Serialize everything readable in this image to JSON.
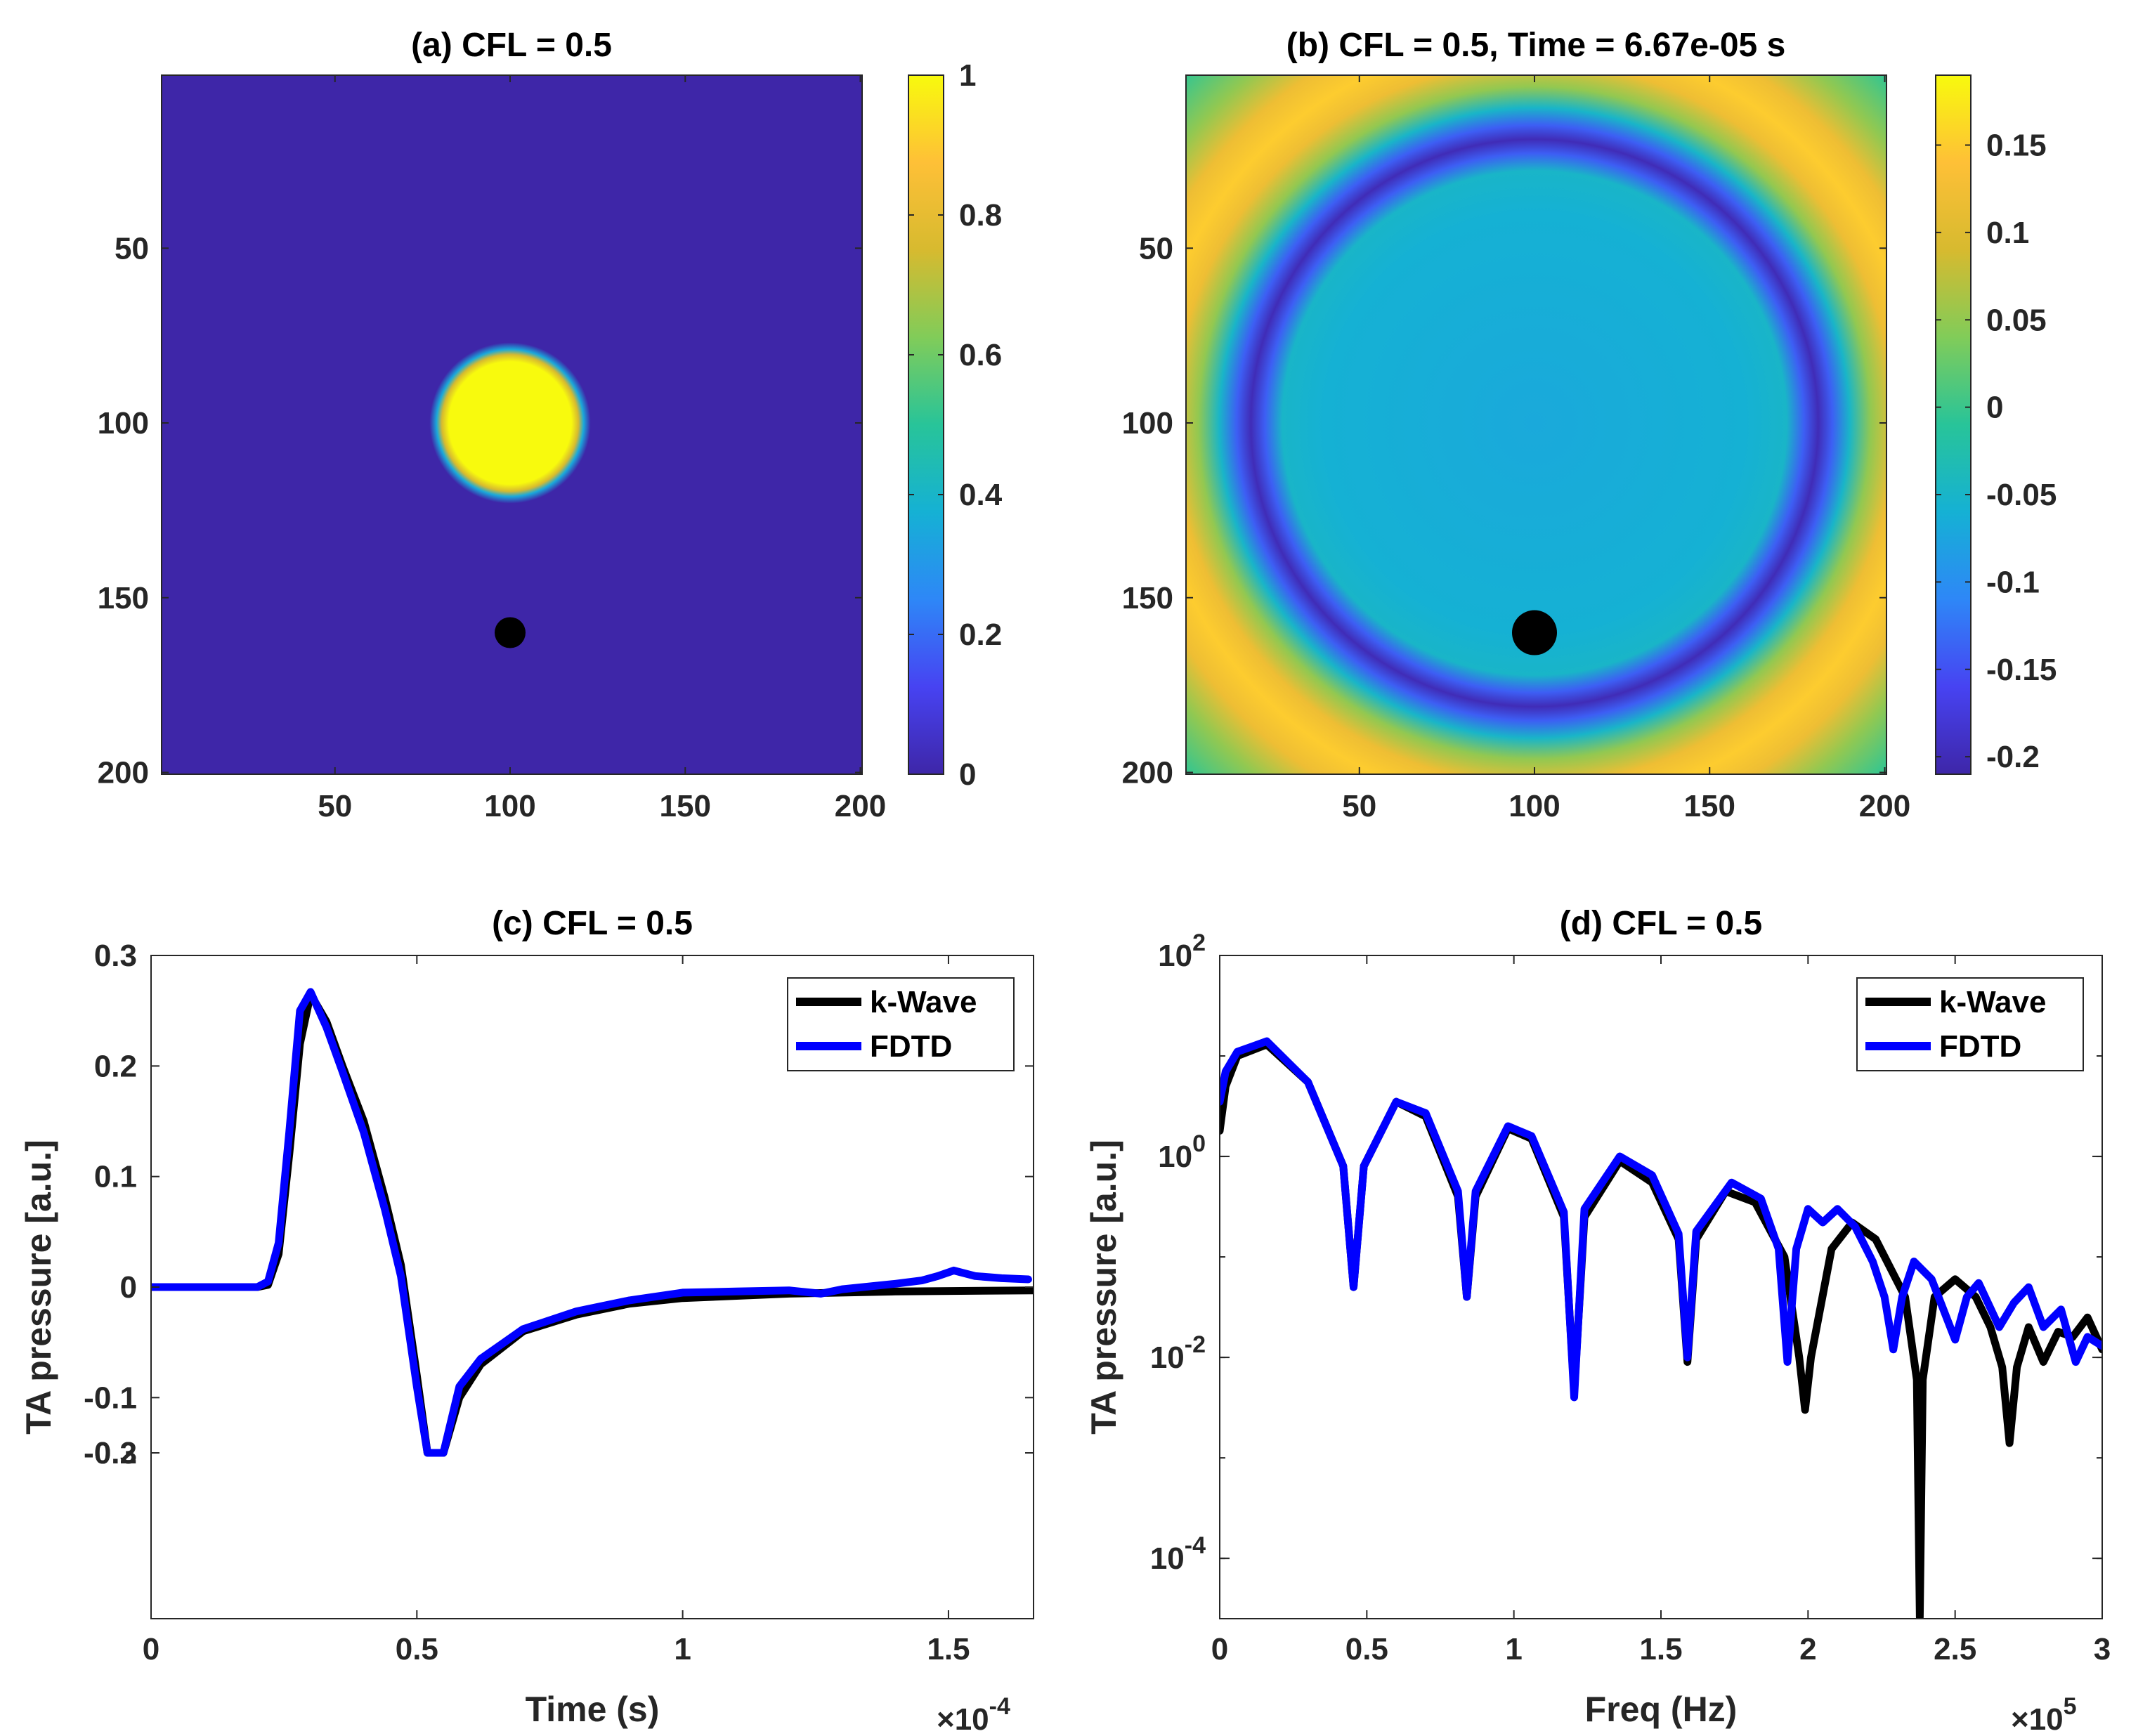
{
  "figure": {
    "panel_a": {
      "title": "(a) CFL = 0.5"
    },
    "panel_b": {
      "title": "(b) CFL = 0.5, Time = 6.67e-05 s"
    },
    "panel_c": {
      "title": "(c) CFL = 0.5",
      "xlabel": "Time (s)",
      "ylabel": "TA pressure [a.u.]",
      "exponent_base": "×10",
      "exponent_power": "-4"
    },
    "panel_d": {
      "title": "(d) CFL = 0.5",
      "xlabel": "Freq (Hz)",
      "ylabel": "TA pressure [a.u.]",
      "exponent_base": "×10",
      "exponent_power": "5"
    }
  },
  "colors": {
    "parula": [
      "#3e26a8",
      "#4743f2",
      "#2e87f7",
      "#15b1d4",
      "#28c499",
      "#81cc59",
      "#d7ba2f",
      "#fec037",
      "#f8fa0d"
    ],
    "kwave": "#000000",
    "fdtd": "#0000ff",
    "marker": "#000000",
    "axes": "#262626"
  },
  "chart_data": [
    {
      "panel": "a",
      "type": "heatmap",
      "title": "(a) CFL = 0.5",
      "xlim": [
        0.5,
        200.5
      ],
      "ylim": [
        0.5,
        200.5
      ],
      "y_reversed": true,
      "xticks": [
        50,
        100,
        150,
        200
      ],
      "yticks": [
        50,
        100,
        150,
        200
      ],
      "field": {
        "background": 0,
        "disk_center": [
          100,
          100
        ],
        "disk_radius": 20,
        "disk_value": 1
      },
      "marker": {
        "x": 100,
        "y": 160
      },
      "colorbar": {
        "range": [
          0,
          1
        ],
        "ticks": [
          0,
          0.2,
          0.4,
          0.6,
          0.8,
          1
        ],
        "tick_labels": [
          "0",
          "0.2",
          "0.4",
          "0.6",
          "0.8",
          "1"
        ]
      }
    },
    {
      "panel": "b",
      "type": "heatmap",
      "title": "(b) CFL = 0.5, Time = 6.67e-05 s",
      "xlim": [
        0.5,
        200.5
      ],
      "ylim": [
        0.5,
        200.5
      ],
      "y_reversed": true,
      "xticks": [
        50,
        100,
        150,
        200
      ],
      "yticks": [
        50,
        100,
        150,
        200
      ],
      "field": {
        "center": [
          100,
          100
        ],
        "inner_value": -0.07,
        "corner_value": 0.0,
        "trough_radius": 81,
        "trough_value": -0.2,
        "peak_radius": 110,
        "peak_value": 0.15
      },
      "marker": {
        "x": 100,
        "y": 160
      },
      "colorbar": {
        "range": [
          -0.21,
          0.19
        ],
        "ticks": [
          -0.2,
          -0.15,
          -0.1,
          -0.05,
          0,
          0.05,
          0.1,
          0.15
        ],
        "tick_labels": [
          "-0.2",
          "-0.15",
          "-0.1",
          "-0.05",
          "0",
          "0.05",
          "0.1",
          "0.15"
        ]
      }
    },
    {
      "panel": "c",
      "type": "line",
      "title": "(c) CFL = 0.5",
      "xlabel": "Time (s)",
      "ylabel": "TA pressure [a.u.]",
      "xlim": [
        0,
        1.66
      ],
      "ylim": [
        -0.3,
        0.3
      ],
      "x_multiplier_exponent": -4,
      "xticks": [
        0,
        0.5,
        1,
        1.5
      ],
      "xtick_labels": [
        "0",
        "0.5",
        "1",
        "1.5"
      ],
      "yticks": [
        -0.3,
        -0.2,
        -0.1,
        0,
        0.1,
        0.2,
        0.3
      ],
      "ytick_labels": [
        "-0.3",
        "-0.2",
        "-0.1",
        "0",
        "0.1",
        "0.2",
        "0.3"
      ],
      "legend_position": "top-right",
      "series": [
        {
          "name": "k-Wave",
          "color": "#000000",
          "x": [
            0,
            0.2,
            0.22,
            0.24,
            0.26,
            0.28,
            0.3,
            0.33,
            0.36,
            0.4,
            0.44,
            0.47,
            0.5,
            0.52,
            0.535,
            0.55,
            0.58,
            0.62,
            0.7,
            0.8,
            0.9,
            1.0,
            1.2,
            1.4,
            1.66
          ],
          "y": [
            0,
            0,
            0.002,
            0.03,
            0.12,
            0.22,
            0.265,
            0.24,
            0.2,
            0.15,
            0.08,
            0.02,
            -0.08,
            -0.18,
            -0.225,
            -0.18,
            -0.1,
            -0.07,
            -0.04,
            -0.025,
            -0.015,
            -0.01,
            -0.006,
            -0.004,
            -0.003
          ]
        },
        {
          "name": "FDTD",
          "color": "#0000ff",
          "x": [
            0,
            0.2,
            0.22,
            0.24,
            0.26,
            0.28,
            0.3,
            0.33,
            0.36,
            0.4,
            0.44,
            0.47,
            0.5,
            0.52,
            0.535,
            0.55,
            0.58,
            0.62,
            0.7,
            0.8,
            0.9,
            1.0,
            1.1,
            1.2,
            1.26,
            1.3,
            1.4,
            1.45,
            1.48,
            1.51,
            1.55,
            1.6,
            1.65
          ],
          "y": [
            0,
            0,
            0.005,
            0.04,
            0.14,
            0.25,
            0.267,
            0.235,
            0.195,
            0.14,
            0.07,
            0.01,
            -0.09,
            -0.19,
            -0.235,
            -0.17,
            -0.09,
            -0.065,
            -0.038,
            -0.022,
            -0.012,
            -0.005,
            -0.004,
            -0.003,
            -0.006,
            -0.002,
            0.003,
            0.006,
            0.01,
            0.015,
            0.01,
            0.008,
            0.007
          ]
        }
      ]
    },
    {
      "panel": "d",
      "type": "line",
      "title": "(d) CFL = 0.5",
      "xlabel": "Freq (Hz)",
      "ylabel": "TA pressure [a.u.]",
      "xlim": [
        0,
        3
      ],
      "ylim": [
        2.51e-05,
        100
      ],
      "yscale": "log",
      "x_multiplier_exponent": 5,
      "xticks": [
        0,
        0.5,
        1,
        1.5,
        2,
        2.5,
        3
      ],
      "xtick_labels": [
        "0",
        "0.5",
        "1",
        "1.5",
        "2",
        "2.5",
        "3"
      ],
      "yticks": [
        0.0001,
        0.01,
        1,
        100
      ],
      "ytick_base": "10",
      "ytick_exponents": [
        "-4",
        "-2",
        "0",
        "2"
      ],
      "legend_position": "top-right",
      "series": [
        {
          "name": "k-Wave",
          "color": "#000000",
          "x": [
            0,
            0.02,
            0.06,
            0.16,
            0.3,
            0.42,
            0.455,
            0.49,
            0.6,
            0.7,
            0.81,
            0.84,
            0.87,
            0.98,
            1.06,
            1.17,
            1.205,
            1.24,
            1.36,
            1.47,
            1.56,
            1.59,
            1.62,
            1.72,
            1.82,
            1.92,
            1.97,
            1.99,
            2.01,
            2.08,
            2.15,
            2.23,
            2.33,
            2.37,
            2.38,
            2.39,
            2.43,
            2.5,
            2.57,
            2.62,
            2.66,
            2.685,
            2.71,
            2.75,
            2.8,
            2.85,
            2.9,
            2.95,
            3.0
          ],
          "y": [
            1.8,
            5,
            10,
            13,
            5.5,
            0.8,
            0.05,
            0.8,
            3.5,
            2.5,
            0.4,
            0.04,
            0.4,
            1.9,
            1.5,
            0.25,
            0.0045,
            0.25,
            0.9,
            0.55,
            0.15,
            0.009,
            0.15,
            0.45,
            0.35,
            0.1,
            0.01,
            0.003,
            0.01,
            0.12,
            0.22,
            0.15,
            0.04,
            0.006,
            2.6e-05,
            0.006,
            0.04,
            0.06,
            0.04,
            0.02,
            0.008,
            0.0014,
            0.008,
            0.02,
            0.009,
            0.018,
            0.016,
            0.025,
            0.012
          ]
        },
        {
          "name": "FDTD",
          "color": "#0000ff",
          "x": [
            0,
            0.02,
            0.06,
            0.16,
            0.3,
            0.42,
            0.455,
            0.49,
            0.6,
            0.7,
            0.81,
            0.84,
            0.87,
            0.98,
            1.06,
            1.17,
            1.205,
            1.24,
            1.36,
            1.47,
            1.56,
            1.59,
            1.62,
            1.74,
            1.84,
            1.9,
            1.93,
            1.96,
            2.0,
            2.05,
            2.1,
            2.16,
            2.22,
            2.26,
            2.29,
            2.32,
            2.36,
            2.42,
            2.5,
            2.54,
            2.58,
            2.65,
            2.7,
            2.75,
            2.8,
            2.86,
            2.91,
            2.95,
            3.0
          ],
          "y": [
            3.5,
            7,
            11,
            14,
            5.5,
            0.8,
            0.05,
            0.8,
            3.5,
            2.7,
            0.45,
            0.04,
            0.45,
            2.0,
            1.6,
            0.28,
            0.004,
            0.3,
            1.0,
            0.65,
            0.17,
            0.01,
            0.18,
            0.55,
            0.38,
            0.12,
            0.009,
            0.12,
            0.3,
            0.22,
            0.3,
            0.2,
            0.09,
            0.04,
            0.012,
            0.04,
            0.09,
            0.06,
            0.015,
            0.04,
            0.055,
            0.02,
            0.035,
            0.05,
            0.02,
            0.03,
            0.009,
            0.016,
            0.013
          ]
        }
      ]
    }
  ]
}
